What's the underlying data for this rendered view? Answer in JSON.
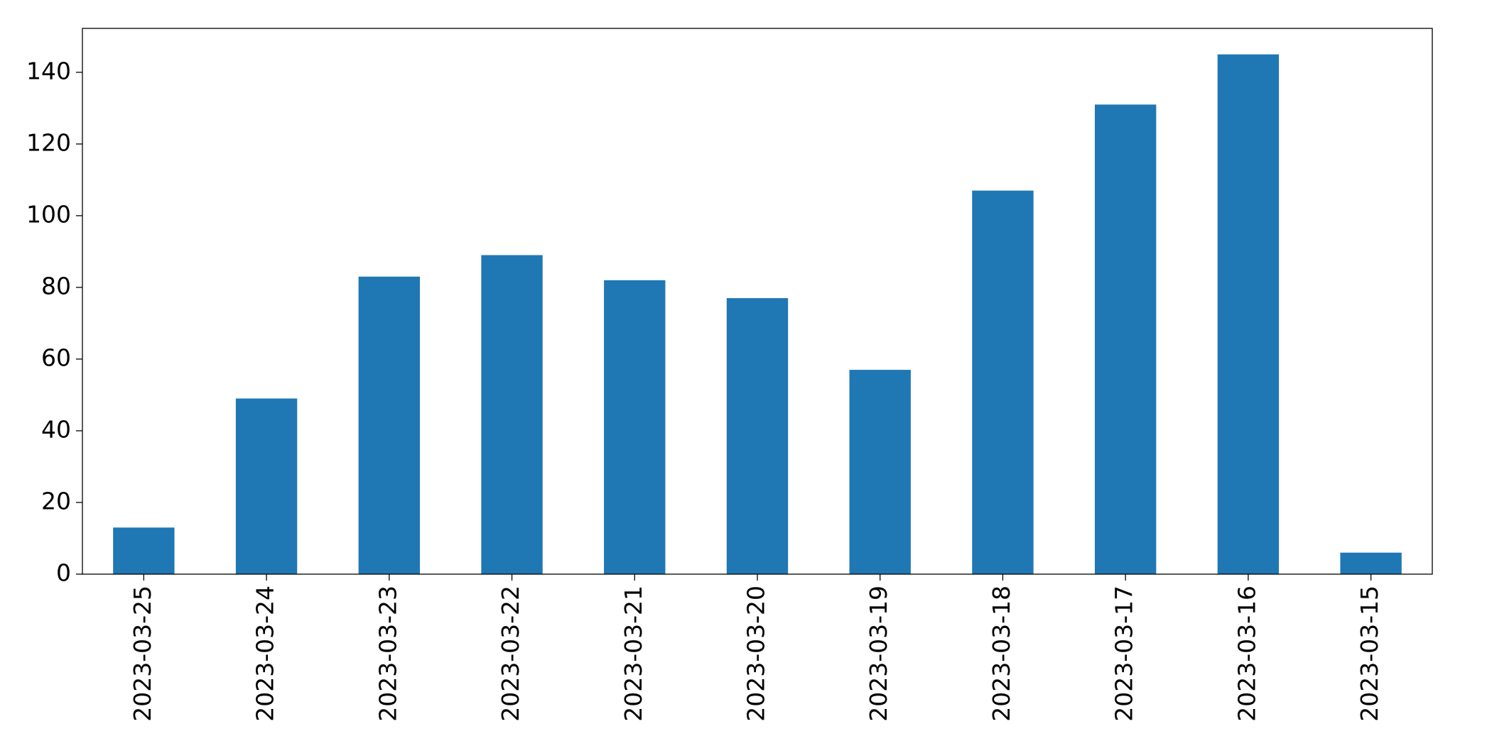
{
  "chart_data": {
    "type": "bar",
    "categories": [
      "2023-03-25",
      "2023-03-24",
      "2023-03-23",
      "2023-03-22",
      "2023-03-21",
      "2023-03-20",
      "2023-03-19",
      "2023-03-18",
      "2023-03-17",
      "2023-03-16",
      "2023-03-15"
    ],
    "values": [
      13,
      49,
      83,
      89,
      82,
      77,
      57,
      107,
      131,
      145,
      6
    ],
    "color": "#1f77b4",
    "ylim": [
      0,
      152.25
    ],
    "yticks": [
      0,
      20,
      40,
      60,
      80,
      100,
      120,
      140
    ],
    "grid": false
  }
}
